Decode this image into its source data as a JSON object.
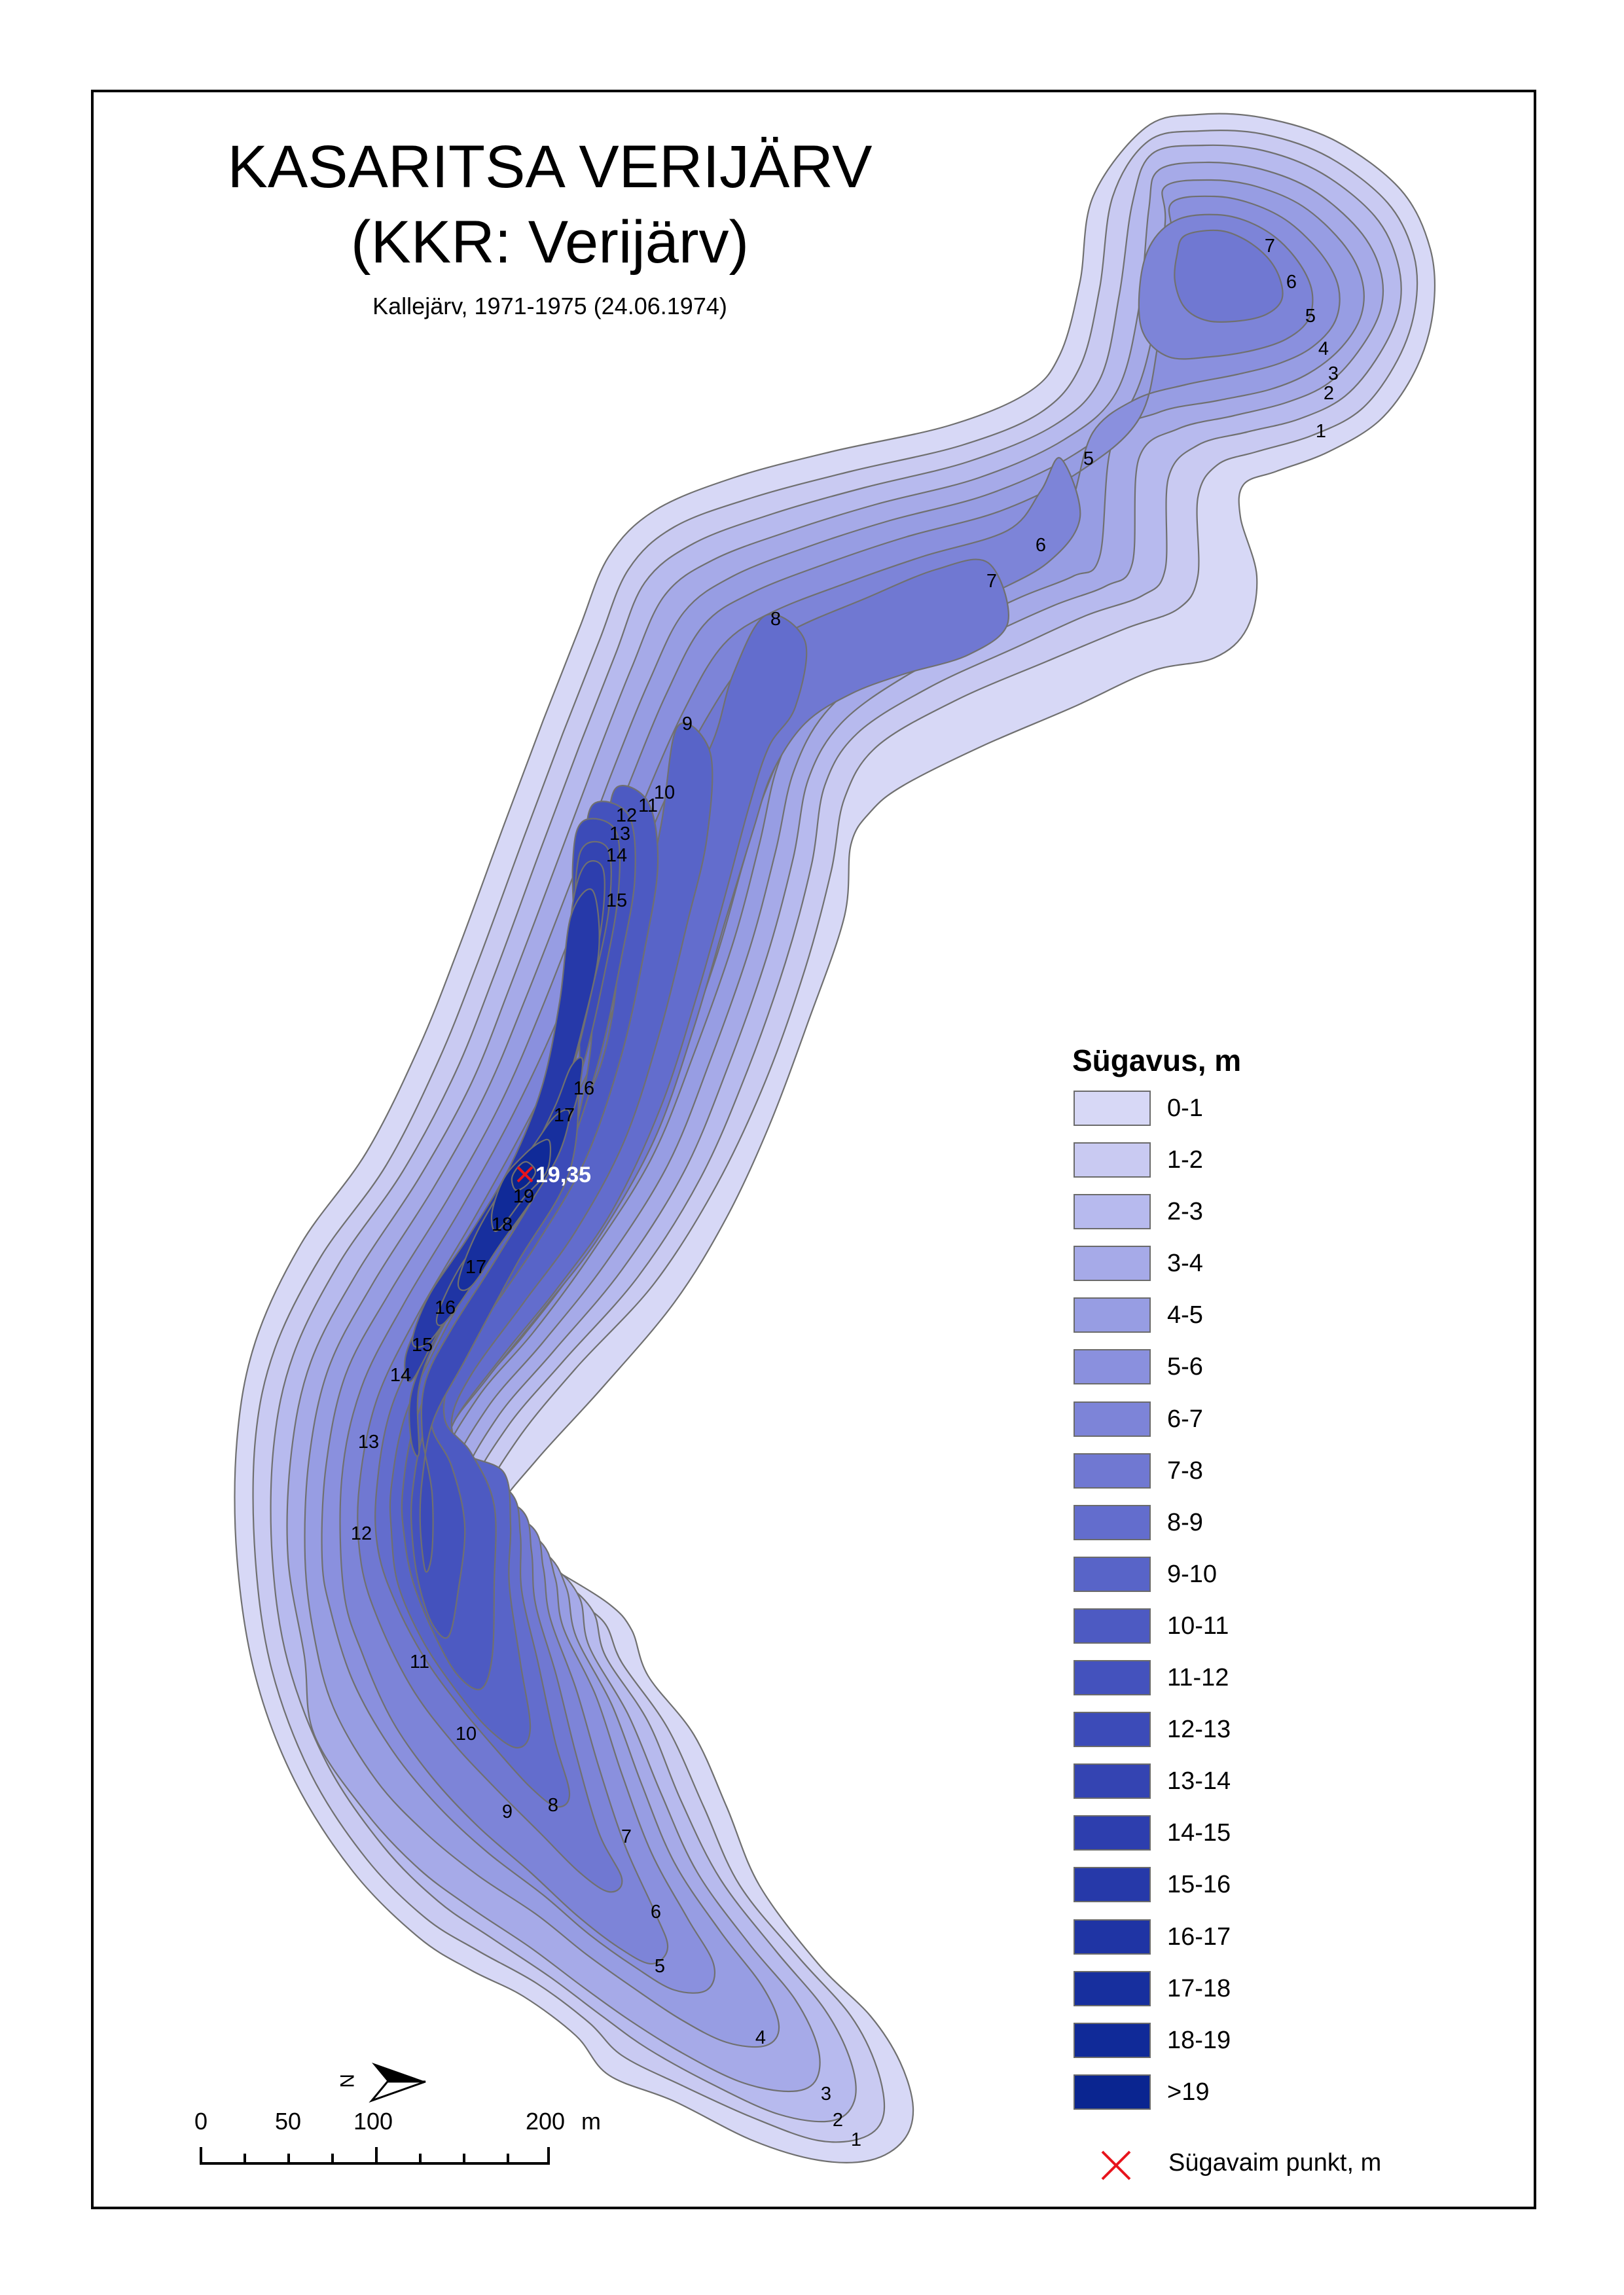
{
  "title": "KASARITSA VERIJÄRV",
  "subtitle_kkr": "(KKR: Verijärv)",
  "source_line": "Kallejärv, 1971-1975 (24.06.1974)",
  "deepest_point": {
    "value": "19,35",
    "marker_color": "#e8141c"
  },
  "contour_labels": [
    "1",
    "2",
    "3",
    "4",
    "5",
    "6",
    "7",
    "8",
    "9",
    "10",
    "11",
    "12",
    "13",
    "14",
    "15",
    "16",
    "17",
    "18",
    "19"
  ],
  "legend": {
    "title": "Sügavus, m",
    "classes": [
      {
        "label": "0-1",
        "color": "#d7d8f6"
      },
      {
        "label": "1-2",
        "color": "#c9caf2"
      },
      {
        "label": "2-3",
        "color": "#b7baee"
      },
      {
        "label": "3-4",
        "color": "#a6aae8"
      },
      {
        "label": "4-5",
        "color": "#979de3"
      },
      {
        "label": "5-6",
        "color": "#8a90de"
      },
      {
        "label": "6-7",
        "color": "#7d84d8"
      },
      {
        "label": "7-8",
        "color": "#7078d2"
      },
      {
        "label": "8-9",
        "color": "#636dcd"
      },
      {
        "label": "9-10",
        "color": "#5864c8"
      },
      {
        "label": "10-11",
        "color": "#4d5ac2"
      },
      {
        "label": "11-12",
        "color": "#4452bd"
      },
      {
        "label": "12-13",
        "color": "#3c4bb8"
      },
      {
        "label": "13-14",
        "color": "#3444b2"
      },
      {
        "label": "14-15",
        "color": "#2d3eae"
      },
      {
        "label": "15-16",
        "color": "#2639a9"
      },
      {
        "label": "16-17",
        "color": "#1f34a4"
      },
      {
        "label": "17-18",
        "color": "#172f9e"
      },
      {
        "label": "18-19",
        "color": "#102a98"
      },
      {
        "label": ">19",
        "color": "#0a2590"
      }
    ],
    "deepest_label": "Sügavaim punkt, m"
  },
  "scale_bar": {
    "labels": [
      "0",
      "50",
      "100",
      "200"
    ],
    "unit": "m"
  },
  "north_arrow": {
    "letter": "N",
    "icon": "north-arrow-icon"
  },
  "contour_line_color": "#707070"
}
